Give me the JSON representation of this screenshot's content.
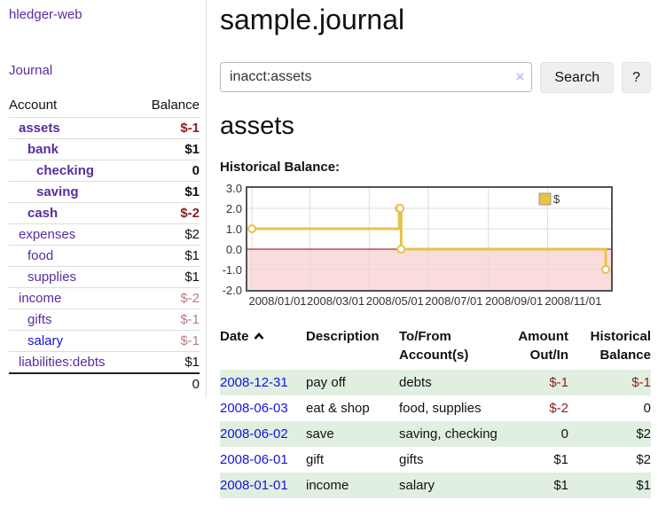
{
  "app": {
    "title": "hledger-web",
    "nav_journal": "Journal"
  },
  "sidebar": {
    "table": {
      "headers": [
        "Account",
        "Balance"
      ],
      "rows": [
        {
          "account": "assets",
          "level": 1,
          "bold": true,
          "balance": "$-1",
          "negative": "strong"
        },
        {
          "account": "bank",
          "level": 2,
          "bold": true,
          "balance": "$1",
          "negative": "none"
        },
        {
          "account": "checking",
          "level": 3,
          "bold": true,
          "balance": "0",
          "negative": "none"
        },
        {
          "account": "saving",
          "level": 3,
          "bold": true,
          "balance": "$1",
          "negative": "none"
        },
        {
          "account": "cash",
          "level": 2,
          "bold": true,
          "balance": "$-2",
          "negative": "strong"
        },
        {
          "account": "expenses",
          "level": 1,
          "bold": false,
          "balance": "$2",
          "negative": "none"
        },
        {
          "account": "food",
          "level": 2,
          "bold": false,
          "balance": "$1",
          "negative": "none"
        },
        {
          "account": "supplies",
          "level": 2,
          "bold": false,
          "balance": "$1",
          "negative": "none"
        },
        {
          "account": "income",
          "level": 1,
          "bold": false,
          "balance": "$-2",
          "negative": "soft"
        },
        {
          "account": "gifts",
          "level": 2,
          "bold": false,
          "balance": "$-1",
          "negative": "soft"
        },
        {
          "account": "salary",
          "level": 2,
          "bold": false,
          "balance": "$-1",
          "negative": "soft",
          "link_color": "blue"
        },
        {
          "account": "liabilities:debts",
          "level": 1,
          "bold": false,
          "balance": "$1",
          "negative": "none"
        }
      ],
      "total": "0"
    }
  },
  "header": {
    "title": "sample.journal"
  },
  "search": {
    "value": "inacct:assets",
    "clear_icon": "×",
    "button": "Search",
    "help_button": "?"
  },
  "register": {
    "heading": "assets",
    "chart_label": "Historical Balance:"
  },
  "chart_data": {
    "type": "line",
    "step": true,
    "title": "Historical Balance",
    "x": [
      "2008-01-01",
      "2008-06-01",
      "2008-06-02",
      "2008-06-03",
      "2008-12-31"
    ],
    "series": [
      {
        "name": "$",
        "values": [
          1,
          2,
          2,
          0,
          -1
        ]
      }
    ],
    "ylim": [
      -2,
      3
    ],
    "y_ticks": [
      "3.0",
      "2.0",
      "1.0",
      "0.0",
      "-1.0",
      "-2.0"
    ],
    "y_tick_values": [
      3,
      2,
      1,
      0,
      -1,
      -2
    ],
    "x_ticks": [
      "2008/01/01",
      "2008/03/01",
      "2008/05/01",
      "2008/07/01",
      "2008/09/01",
      "2008/11/01"
    ],
    "x_tick_dates": [
      "2008-01-01",
      "2008-03-01",
      "2008-05-01",
      "2008-07-01",
      "2008-09-01",
      "2008-11-01"
    ],
    "legend": [
      {
        "label": "$",
        "color": "#e8c33d"
      }
    ],
    "legend_position": "top-right",
    "grid": true,
    "line_color": "#e7c34c",
    "marker": "open-circle",
    "negative_region_color": "#fbdcdc",
    "zero_line_color": "#990000"
  },
  "transactions": {
    "headers": {
      "date": "Date",
      "description": "Description",
      "account": "To/From Account(s)",
      "amount": "Amount Out/In",
      "balance": "Historical Balance"
    },
    "rows": [
      {
        "date": "2008-12-31",
        "description": "pay off",
        "account": "debts",
        "amount": "$-1",
        "amount_negative": true,
        "balance": "$-1",
        "balance_negative": true
      },
      {
        "date": "2008-06-03",
        "description": "eat & shop",
        "account": "food, supplies",
        "amount": "$-2",
        "amount_negative": true,
        "balance": "0",
        "balance_negative": false
      },
      {
        "date": "2008-06-02",
        "description": "save",
        "account": "saving, checking",
        "amount": "0",
        "amount_negative": false,
        "balance": "$2",
        "balance_negative": false
      },
      {
        "date": "2008-06-01",
        "description": "gift",
        "account": "gifts",
        "amount": "$1",
        "amount_negative": false,
        "balance": "$2",
        "balance_negative": false
      },
      {
        "date": "2008-01-01",
        "description": "income",
        "account": "salary",
        "amount": "$1",
        "amount_negative": false,
        "balance": "$1",
        "balance_negative": false
      }
    ]
  },
  "colors": {
    "link_purple": "#5a2ca0",
    "link_blue": "#1414dc",
    "negative_strong": "#8b1d1d",
    "negative_soft": "#b87f7f",
    "row_green": "#e1efe1",
    "chart_border": "#545454"
  }
}
